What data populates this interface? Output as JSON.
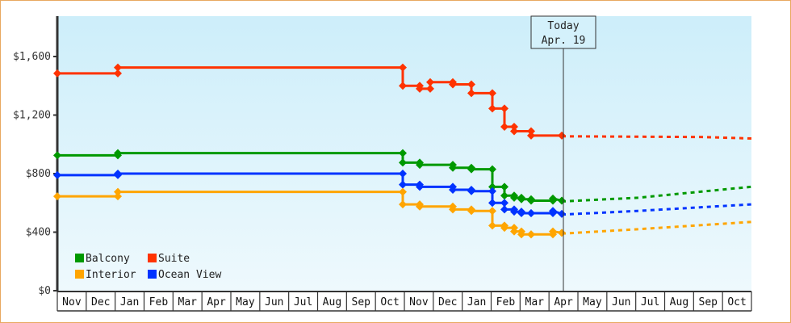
{
  "chart_data": {
    "type": "line",
    "title": "",
    "xlabel": "",
    "ylabel": "",
    "ylim": [
      0,
      1870
    ],
    "y_ticks": [
      "$0",
      "$400",
      "$800",
      "$1,200",
      "$1,600"
    ],
    "y_tick_values": [
      0,
      400,
      800,
      1200,
      1600
    ],
    "x_tick_labels": [
      "Nov",
      "Dec",
      "Jan",
      "Feb",
      "Mar",
      "Apr",
      "May",
      "Jun",
      "Jul",
      "Aug",
      "Sep",
      "Oct",
      "Nov",
      "Dec",
      "Jan",
      "Feb",
      "Mar",
      "Apr",
      "May",
      "Jun",
      "Jul",
      "Aug",
      "Sep",
      "Oct"
    ],
    "today_marker": {
      "line1": "Today",
      "line2": "Apr. 19"
    },
    "legend": [
      {
        "name": "Balcony",
        "color": "#009900"
      },
      {
        "name": "Suite",
        "color": "#ff3300"
      },
      {
        "name": "Interior",
        "color": "#ffa500"
      },
      {
        "name": "Ocean View",
        "color": "#0033ff"
      }
    ],
    "series": [
      {
        "name": "Suite",
        "color": "#ff3300",
        "points": [
          [
            71,
            1485
          ],
          [
            146,
            1485
          ],
          [
            146,
            1525
          ],
          [
            499,
            1525
          ],
          [
            499,
            1400
          ],
          [
            520,
            1400
          ],
          [
            520,
            1380
          ],
          [
            533,
            1380
          ],
          [
            533,
            1425
          ],
          [
            561,
            1425
          ],
          [
            561,
            1410
          ],
          [
            584,
            1410
          ],
          [
            584,
            1350
          ],
          [
            610,
            1350
          ],
          [
            610,
            1245
          ],
          [
            625,
            1245
          ],
          [
            625,
            1120
          ],
          [
            637,
            1120
          ],
          [
            637,
            1090
          ],
          [
            658,
            1090
          ],
          [
            658,
            1060
          ],
          [
            696,
            1060
          ]
        ],
        "forecast": [
          [
            696,
            1055
          ],
          [
            870,
            1050
          ],
          [
            931,
            1040
          ]
        ]
      },
      {
        "name": "Balcony",
        "color": "#009900",
        "points": [
          [
            71,
            925
          ],
          [
            146,
            925
          ],
          [
            146,
            940
          ],
          [
            499,
            940
          ],
          [
            499,
            875
          ],
          [
            520,
            875
          ],
          [
            520,
            860
          ],
          [
            561,
            860
          ],
          [
            561,
            840
          ],
          [
            584,
            840
          ],
          [
            584,
            830
          ],
          [
            610,
            830
          ],
          [
            610,
            710
          ],
          [
            625,
            710
          ],
          [
            625,
            650
          ],
          [
            637,
            650
          ],
          [
            637,
            635
          ],
          [
            646,
            635
          ],
          [
            646,
            625
          ],
          [
            658,
            625
          ],
          [
            658,
            615
          ],
          [
            685,
            615
          ],
          [
            685,
            630
          ],
          [
            696,
            615
          ]
        ],
        "forecast": [
          [
            696,
            610
          ],
          [
            790,
            635
          ],
          [
            931,
            710
          ]
        ]
      },
      {
        "name": "Ocean View",
        "color": "#0033ff",
        "points": [
          [
            71,
            790
          ],
          [
            146,
            790
          ],
          [
            146,
            800
          ],
          [
            499,
            800
          ],
          [
            499,
            725
          ],
          [
            520,
            725
          ],
          [
            520,
            710
          ],
          [
            561,
            710
          ],
          [
            561,
            690
          ],
          [
            584,
            690
          ],
          [
            584,
            680
          ],
          [
            610,
            680
          ],
          [
            610,
            600
          ],
          [
            625,
            600
          ],
          [
            625,
            555
          ],
          [
            637,
            555
          ],
          [
            637,
            540
          ],
          [
            646,
            540
          ],
          [
            646,
            530
          ],
          [
            658,
            530
          ],
          [
            658,
            530
          ],
          [
            685,
            530
          ],
          [
            685,
            545
          ],
          [
            696,
            525
          ]
        ],
        "forecast": [
          [
            696,
            520
          ],
          [
            790,
            545
          ],
          [
            931,
            590
          ]
        ]
      },
      {
        "name": "Interior",
        "color": "#ffa500",
        "points": [
          [
            71,
            645
          ],
          [
            146,
            645
          ],
          [
            146,
            675
          ],
          [
            499,
            675
          ],
          [
            499,
            590
          ],
          [
            520,
            590
          ],
          [
            520,
            575
          ],
          [
            561,
            575
          ],
          [
            561,
            555
          ],
          [
            584,
            555
          ],
          [
            584,
            545
          ],
          [
            610,
            545
          ],
          [
            610,
            445
          ],
          [
            625,
            445
          ],
          [
            625,
            430
          ],
          [
            637,
            430
          ],
          [
            637,
            405
          ],
          [
            646,
            405
          ],
          [
            646,
            385
          ],
          [
            658,
            385
          ],
          [
            658,
            385
          ],
          [
            685,
            385
          ],
          [
            685,
            405
          ],
          [
            696,
            395
          ]
        ],
        "forecast": [
          [
            696,
            390
          ],
          [
            790,
            420
          ],
          [
            931,
            470
          ]
        ]
      }
    ]
  }
}
